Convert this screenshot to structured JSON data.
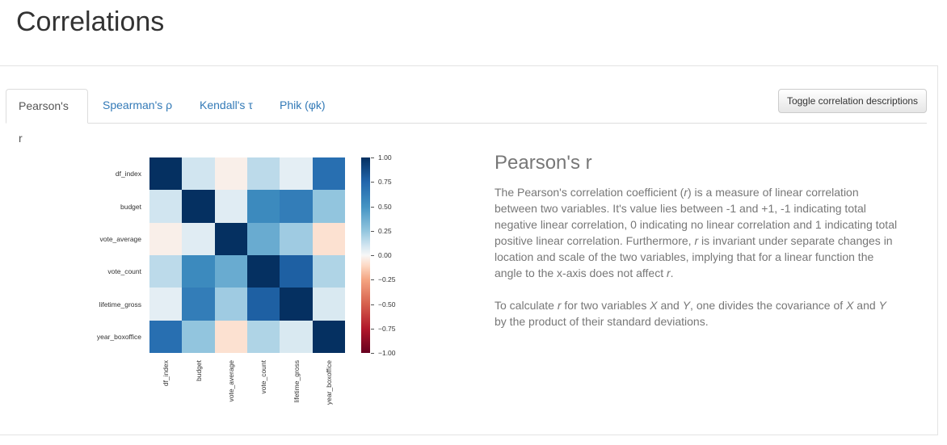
{
  "header": {
    "title": "Correlations"
  },
  "tabs": [
    {
      "label": "Pearson's r",
      "active": true
    },
    {
      "label": "Spearman's ρ",
      "active": false
    },
    {
      "label": "Kendall's τ",
      "active": false
    },
    {
      "label": "Phik (φk)",
      "active": false
    }
  ],
  "toolbar": {
    "toggle_label": "Toggle correlation descriptions"
  },
  "description": {
    "title": "Pearson's r",
    "p1_parts": [
      "The Pearson's correlation coefficient (",
      "r",
      ") is a measure of linear correlation between two variables. It's value lies between -1 and +1, -1 indicating total negative linear correlation, 0 indicating no linear correlation and 1 indicating total positive linear correlation. Furthermore, ",
      "r",
      " is invariant under separate changes in location and scale of the two variables, implying that for a linear function the angle to the x-axis does not affect ",
      "r",
      "."
    ],
    "p2_parts": [
      "To calculate ",
      "r",
      " for two variables ",
      "X",
      " and ",
      "Y",
      ", one divides the covariance of ",
      "X",
      " and ",
      "Y",
      " by the product of their standard deviations."
    ]
  },
  "chart_data": {
    "type": "heatmap",
    "title": "Pearson's r",
    "variables": [
      "df_index",
      "budget",
      "vote_average",
      "vote_count",
      "lifetime_gross",
      "year_boxoffice"
    ],
    "matrix": [
      [
        1.0,
        0.1,
        -0.03,
        0.15,
        0.05,
        0.7
      ],
      [
        0.1,
        1.0,
        0.06,
        0.55,
        0.62,
        0.25
      ],
      [
        -0.03,
        0.06,
        1.0,
        0.38,
        0.22,
        -0.08
      ],
      [
        0.15,
        0.55,
        0.38,
        1.0,
        0.78,
        0.18
      ],
      [
        0.05,
        0.62,
        0.22,
        0.78,
        1.0,
        0.08
      ],
      [
        0.7,
        0.25,
        -0.08,
        0.18,
        0.08,
        1.0
      ]
    ],
    "colorbar": {
      "min": -1.0,
      "max": 1.0,
      "ticks": [
        "1.00",
        "0.75",
        "0.50",
        "0.25",
        "0.00",
        "−0.25",
        "−0.50",
        "−0.75",
        "−1.00"
      ],
      "colormap": "RdBu"
    },
    "xlabel": "",
    "ylabel": ""
  }
}
